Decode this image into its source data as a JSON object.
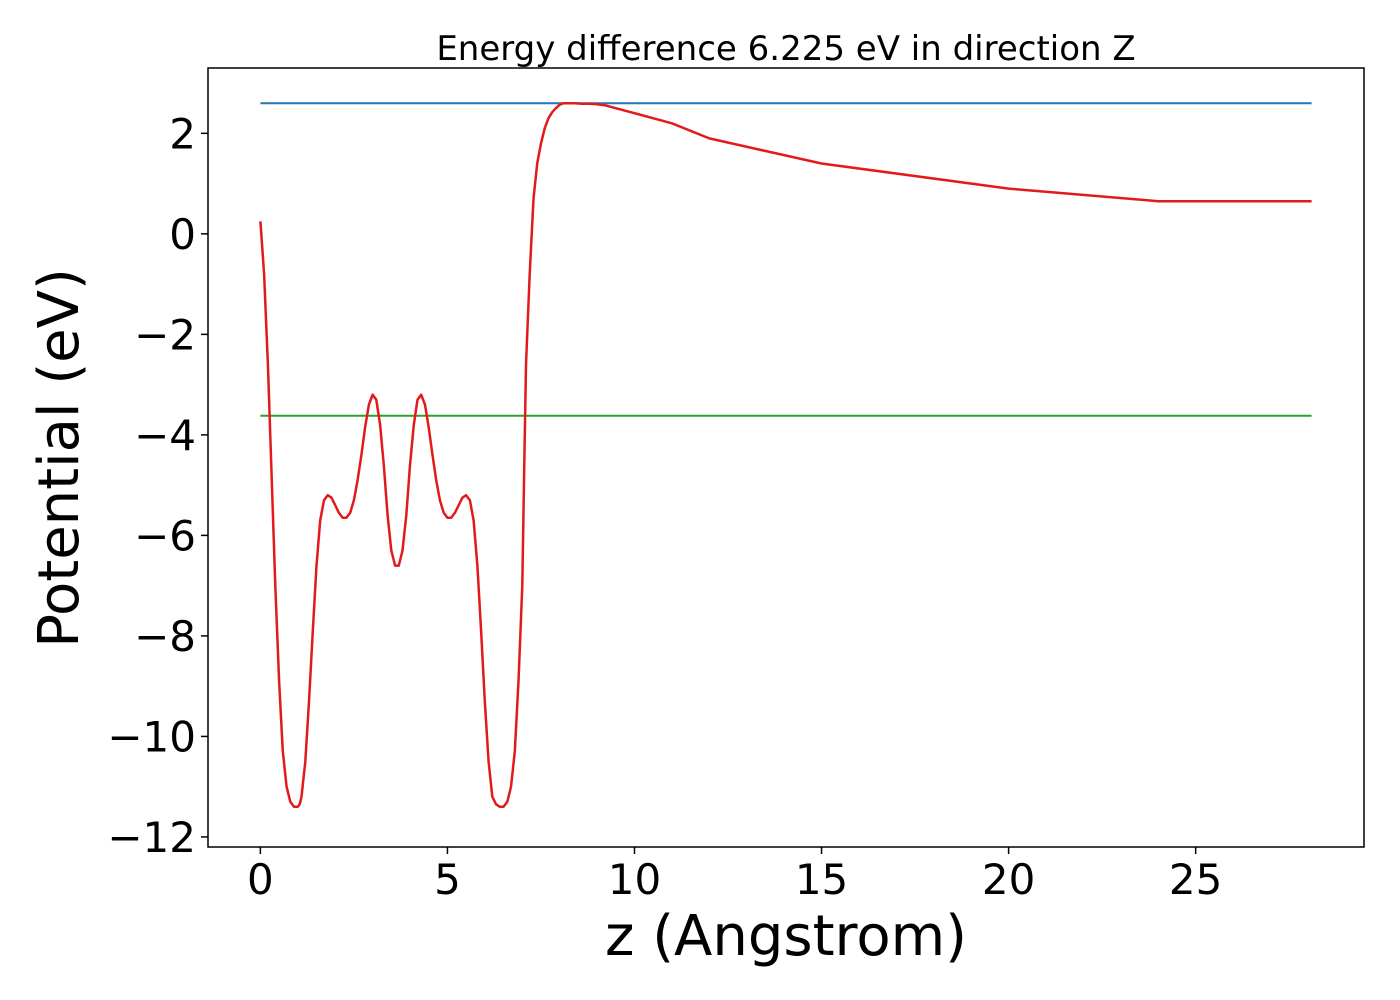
{
  "chart_data": {
    "type": "line",
    "title": "Energy difference 6.225 eV in direction Z",
    "xlabel": "z (Angstrom)",
    "ylabel": "Potential (eV)",
    "xlim": [
      -1.4,
      29.5
    ],
    "ylim": [
      -12.2,
      3.3
    ],
    "x_ticks": [
      0,
      5,
      10,
      15,
      20,
      25
    ],
    "x_tick_labels": [
      "0",
      "5",
      "10",
      "15",
      "20",
      "25"
    ],
    "y_ticks": [
      2,
      0,
      -2,
      -4,
      -6,
      -8,
      -10,
      -12
    ],
    "y_tick_labels": [
      "2",
      "0",
      "−2",
      "−4",
      "−6",
      "−8",
      "−10",
      "−12"
    ],
    "grid": false,
    "series": [
      {
        "color": "#1f77b4",
        "x": [
          0,
          28.1
        ],
        "values": [
          2.6,
          2.6
        ]
      },
      {
        "color": "#2ca02c",
        "x": [
          0,
          28.1
        ],
        "values": [
          -3.62,
          -3.62
        ]
      },
      {
        "color": "#e31a1c",
        "x": [
          0,
          0.1,
          0.2,
          0.3,
          0.4,
          0.5,
          0.6,
          0.7,
          0.8,
          0.9,
          1.0,
          1.05,
          1.1,
          1.2,
          1.3,
          1.4,
          1.5,
          1.6,
          1.7,
          1.8,
          1.9,
          2.0,
          2.1,
          2.2,
          2.3,
          2.4,
          2.5,
          2.6,
          2.7,
          2.8,
          2.9,
          3.0,
          3.1,
          3.2,
          3.3,
          3.4,
          3.5,
          3.6,
          3.7,
          3.8,
          3.9,
          4.0,
          4.1,
          4.2,
          4.3,
          4.4,
          4.5,
          4.6,
          4.7,
          4.8,
          4.9,
          5.0,
          5.1,
          5.2,
          5.3,
          5.4,
          5.5,
          5.6,
          5.7,
          5.8,
          5.9,
          6.0,
          6.1,
          6.2,
          6.3,
          6.4,
          6.5,
          6.6,
          6.7,
          6.8,
          6.9,
          7.0,
          7.05,
          7.1,
          7.2,
          7.3,
          7.4,
          7.5,
          7.6,
          7.7,
          7.8,
          7.9,
          8.0,
          8.1,
          8.2,
          8.3,
          8.4,
          8.6,
          8.8,
          9.0,
          9.2,
          9.5,
          10.0,
          11.0,
          12.0,
          15.0,
          20.0,
          24.0,
          25.5,
          26.0,
          26.5,
          26.8,
          27.0,
          27.2,
          27.4,
          27.6,
          27.8,
          28.0,
          28.1
        ],
        "values": [
          0.25,
          -0.8,
          -2.6,
          -4.8,
          -7.0,
          -8.9,
          -10.3,
          -11.0,
          -11.3,
          -11.4,
          -11.4,
          -11.35,
          -11.2,
          -10.5,
          -9.3,
          -7.9,
          -6.6,
          -5.7,
          -5.3,
          -5.2,
          -5.25,
          -5.4,
          -5.55,
          -5.65,
          -5.65,
          -5.55,
          -5.3,
          -4.9,
          -4.4,
          -3.85,
          -3.4,
          -3.2,
          -3.3,
          -3.8,
          -4.6,
          -5.6,
          -6.3,
          -6.6,
          -6.6,
          -6.3,
          -5.6,
          -4.6,
          -3.8,
          -3.3,
          -3.2,
          -3.4,
          -3.85,
          -4.4,
          -4.9,
          -5.3,
          -5.55,
          -5.65,
          -5.65,
          -5.55,
          -5.4,
          -5.25,
          -5.2,
          -5.3,
          -5.7,
          -6.6,
          -7.9,
          -9.3,
          -10.5,
          -11.2,
          -11.35,
          -11.4,
          -11.4,
          -11.3,
          -11.0,
          -10.3,
          -8.9,
          -7.0,
          -4.8,
          -2.6,
          -0.8,
          0.7,
          1.4,
          1.8,
          2.1,
          2.3,
          2.42,
          2.5,
          2.57,
          2.6,
          2.6,
          2.6,
          2.6,
          2.59,
          2.59,
          2.58,
          2.56,
          2.5,
          2.4,
          2.2,
          1.9,
          1.4,
          0.9,
          0.65,
          0.65,
          0.65,
          0.65,
          0.65,
          0.65,
          0.65,
          0.65,
          0.65,
          0.65,
          0.65,
          0.65
        ]
      }
    ]
  }
}
